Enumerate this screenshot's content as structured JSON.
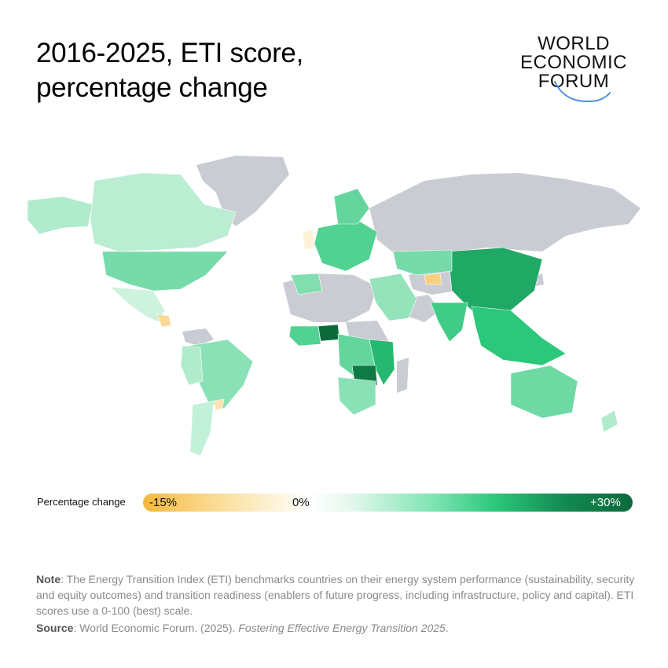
{
  "header": {
    "title_line1": "2016-2025, ETI score,",
    "title_line2": "percentage change"
  },
  "logo": {
    "line1": "WORLD",
    "line2": "ECONOMIC",
    "line3": "FORUM",
    "arc_color": "#4a8fe7"
  },
  "legend": {
    "label": "Percentage change",
    "min_label": "-15%",
    "mid_label": "0%",
    "max_label": "+30%",
    "min_value": -15,
    "max_value": 30,
    "colors": {
      "negative": "#f5b83e",
      "neutral": "#ffffff",
      "positive": "#0a6a3b"
    }
  },
  "map": {
    "no_data_color": "#c9ccd2"
  },
  "footer": {
    "note_label": "Note",
    "note_text": ": The Energy Transition Index (ETI) benchmarks countries on their energy system performance (sustainability, security and equity outcomes) and transition readiness (enablers of future progress, including infrastructure, policy and capital). ETI scores use a 0-100 (best) scale.",
    "source_label": "Source",
    "source_text": ": World Economic Forum. (2025). ",
    "source_title": "Fostering Effective Energy Transition 2025",
    "source_end": "."
  }
}
